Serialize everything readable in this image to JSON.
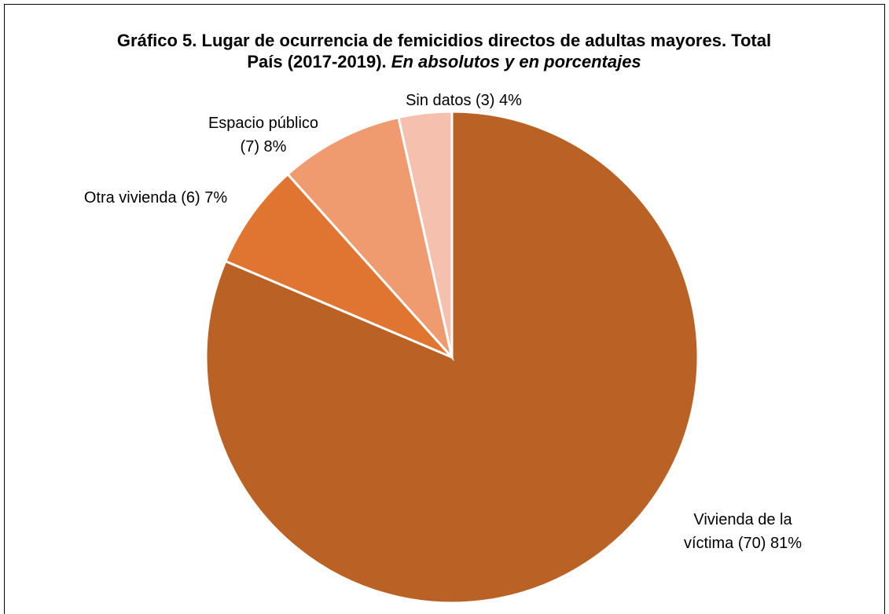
{
  "chart_data": {
    "type": "pie",
    "title": "Gráfico 5. Lugar de ocurrencia de femicidios directos de adultas mayores. Total País (2017-2019).",
    "subtitle": "En absolutos y en porcentajes",
    "categories": [
      "Vivienda de la víctima",
      "Otra vivienda",
      "Espacio público",
      "Sin datos"
    ],
    "values": [
      70,
      6,
      7,
      3
    ],
    "value_labels": [
      "(70) 81%",
      "(6) 7%",
      "(7) 8%",
      "(3) 4%"
    ],
    "colors": [
      "#BA6225",
      "#DF7530",
      "#F09A70",
      "#F5C0AE"
    ]
  }
}
